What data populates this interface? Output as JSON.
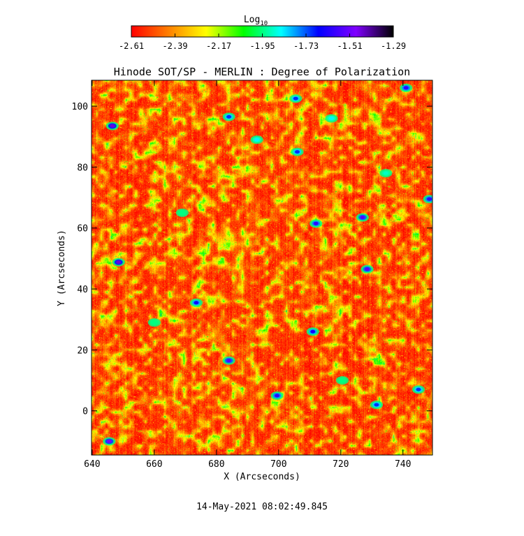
{
  "chart_data": {
    "type": "heatmap",
    "title": "Hinode SOT/SP - MERLIN : Degree of Polarization",
    "xlabel": "X (Arcseconds)",
    "ylabel": "Y (Arcseconds)",
    "xlim": [
      639.8,
      749.5
    ],
    "ylim": [
      -14.5,
      108.5
    ],
    "x_ticks": [
      640,
      660,
      680,
      700,
      720,
      740
    ],
    "y_ticks": [
      0,
      20,
      40,
      60,
      80,
      100
    ],
    "x_tick_labels": [
      "640",
      "660",
      "680",
      "700",
      "720",
      "740"
    ],
    "y_tick_labels": [
      "0",
      "20",
      "40",
      "60",
      "80",
      "100"
    ],
    "colorbar": {
      "label_base": "Log",
      "label_sub": "10",
      "range": [
        -2.61,
        -1.29
      ],
      "ticks": [
        -2.61,
        -2.39,
        -2.17,
        -1.95,
        -1.73,
        -1.51,
        -1.29
      ],
      "tick_labels": [
        "-2.61",
        "-2.39",
        "-2.17",
        "-1.95",
        "-1.73",
        "-1.51",
        "-1.29"
      ],
      "colormap": [
        "#ff0000",
        "#ff8000",
        "#ffff00",
        "#00ff00",
        "#00ffff",
        "#0000ff",
        "#8000ff",
        "#000000"
      ]
    },
    "field_base_level": -2.55,
    "patches": [
      {
        "x": 646.5,
        "y": 93.5,
        "value": -1.45
      },
      {
        "x": 648.5,
        "y": 48.8,
        "value": -1.45
      },
      {
        "x": 645.5,
        "y": -10.0,
        "value": -1.5
      },
      {
        "x": 684.0,
        "y": 16.5,
        "value": -1.55
      },
      {
        "x": 699.5,
        "y": 5.0,
        "value": -1.6
      },
      {
        "x": 705.5,
        "y": 102.5,
        "value": -1.7
      },
      {
        "x": 706.0,
        "y": 85.0,
        "value": -1.7
      },
      {
        "x": 712.0,
        "y": 61.5,
        "value": -1.6
      },
      {
        "x": 711.0,
        "y": 26.0,
        "value": -1.65
      },
      {
        "x": 727.0,
        "y": 63.5,
        "value": -1.55
      },
      {
        "x": 728.5,
        "y": 46.5,
        "value": -1.55
      },
      {
        "x": 741.0,
        "y": 106.0,
        "value": -1.6
      },
      {
        "x": 748.5,
        "y": 69.5,
        "value": -1.6
      },
      {
        "x": 673.5,
        "y": 35.5,
        "value": -1.65
      },
      {
        "x": 731.5,
        "y": 2.0,
        "value": -1.7
      },
      {
        "x": 745.0,
        "y": 7.0,
        "value": -1.7
      },
      {
        "x": 693.0,
        "y": 89.0,
        "value": -1.85
      },
      {
        "x": 734.5,
        "y": 78.0,
        "value": -1.9
      },
      {
        "x": 669.0,
        "y": 65.0,
        "value": -1.95
      },
      {
        "x": 660.0,
        "y": 29.0,
        "value": -1.95
      },
      {
        "x": 720.5,
        "y": 10.0,
        "value": -1.95
      },
      {
        "x": 684.0,
        "y": 96.5,
        "value": -1.7
      },
      {
        "x": 717.0,
        "y": 96.0,
        "value": -1.85
      }
    ],
    "timestamp": "14-May-2021 08:02:49.845",
    "grid": false
  }
}
